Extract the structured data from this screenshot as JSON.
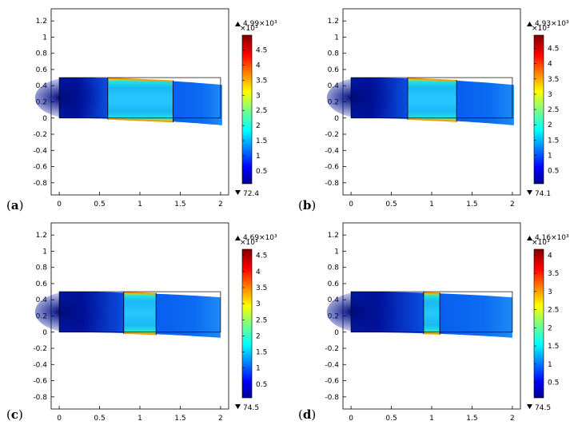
{
  "chart_data": [
    {
      "type": "heatmap",
      "panel_label": "a",
      "x_ticks": [
        "0",
        "0.5",
        "1",
        "1.5",
        "2"
      ],
      "y_ticks": [
        "1.2",
        "1",
        "0.8",
        "0.6",
        "0.4",
        "0.2",
        "0",
        "-0.2",
        "-0.4",
        "-0.6",
        "-0.8"
      ],
      "xlim": [
        -0.1,
        2.1
      ],
      "ylim": [
        -0.95,
        1.35
      ],
      "domain": {
        "x": [
          0,
          2
        ],
        "y": [
          0,
          0.5
        ]
      },
      "interfaces": [
        0.6,
        1.4
      ],
      "deformation": {
        "tip_dx": 0.02,
        "tip_dy": -0.09
      },
      "colorbar": {
        "max_label": "4.99×10³",
        "min_label": "72.4",
        "exponent_label": "×10³",
        "range": [
          0.0724,
          4.99
        ],
        "ticks": [
          "4.5",
          "4",
          "3.5",
          "3",
          "2.5",
          "2",
          "1.5",
          "1",
          "0.5"
        ],
        "colormap": "jet"
      }
    },
    {
      "type": "heatmap",
      "panel_label": "b",
      "x_ticks": [
        "0",
        "0.5",
        "1",
        "1.5",
        "2"
      ],
      "y_ticks": [
        "1.2",
        "1",
        "0.8",
        "0.6",
        "0.4",
        "0.2",
        "0",
        "-0.2",
        "-0.4",
        "-0.6",
        "-0.8"
      ],
      "xlim": [
        -0.1,
        2.1
      ],
      "ylim": [
        -0.95,
        1.35
      ],
      "domain": {
        "x": [
          0,
          2
        ],
        "y": [
          0,
          0.5
        ]
      },
      "interfaces": [
        0.7,
        1.3
      ],
      "deformation": {
        "tip_dx": 0.02,
        "tip_dy": -0.09
      },
      "colorbar": {
        "max_label": "4.93×10³",
        "min_label": "74.1",
        "exponent_label": "×10³",
        "range": [
          0.0741,
          4.93
        ],
        "ticks": [
          "4.5",
          "4",
          "3.5",
          "3",
          "2.5",
          "2",
          "1.5",
          "1",
          "0.5"
        ],
        "colormap": "jet"
      }
    },
    {
      "type": "heatmap",
      "panel_label": "c",
      "x_ticks": [
        "0",
        "0.5",
        "1",
        "1.5",
        "2"
      ],
      "y_ticks": [
        "1.2",
        "1",
        "0.8",
        "0.6",
        "0.4",
        "0.2",
        "0",
        "-0.2",
        "-0.4",
        "-0.6",
        "-0.8"
      ],
      "xlim": [
        -0.1,
        2.1
      ],
      "ylim": [
        -0.95,
        1.35
      ],
      "domain": {
        "x": [
          0,
          2
        ],
        "y": [
          0,
          0.5
        ]
      },
      "interfaces": [
        0.8,
        1.2
      ],
      "deformation": {
        "tip_dx": 0.0,
        "tip_dy": -0.07
      },
      "colorbar": {
        "max_label": "4.69×10³",
        "min_label": "74.5",
        "exponent_label": "×10³",
        "range": [
          0.0745,
          4.69
        ],
        "ticks": [
          "4.5",
          "4",
          "3.5",
          "3",
          "2.5",
          "2",
          "1.5",
          "1",
          "0.5"
        ],
        "colormap": "jet"
      }
    },
    {
      "type": "heatmap",
      "panel_label": "d",
      "x_ticks": [
        "0",
        "0.5",
        "1",
        "1.5",
        "2"
      ],
      "y_ticks": [
        "1.2",
        "1",
        "0.8",
        "0.6",
        "0.4",
        "0.2",
        "0",
        "-0.2",
        "-0.4",
        "-0.6",
        "-0.8"
      ],
      "xlim": [
        -0.1,
        2.1
      ],
      "ylim": [
        -0.95,
        1.35
      ],
      "domain": {
        "x": [
          0,
          2
        ],
        "y": [
          0,
          0.5
        ]
      },
      "interfaces": [
        0.9,
        1.1
      ],
      "deformation": {
        "tip_dx": 0.0,
        "tip_dy": -0.07
      },
      "colorbar": {
        "max_label": "4.16×10³",
        "min_label": "74.5",
        "exponent_label": "×10³",
        "range": [
          0.0745,
          4.16
        ],
        "ticks": [
          "4",
          "3.5",
          "3",
          "2.5",
          "2",
          "1.5",
          "1",
          "0.5"
        ],
        "colormap": "jet"
      }
    }
  ]
}
